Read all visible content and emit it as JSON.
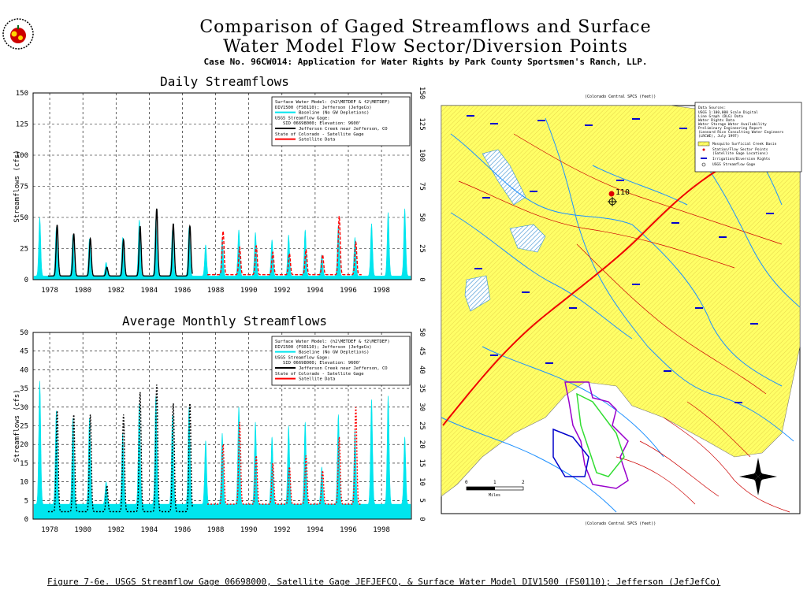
{
  "header": {
    "title_line1": "Comparison of Gaged Streamflows and Surface",
    "title_line2": "Water Model Flow Sector/Diversion Points",
    "subtitle": "Case No. 96CW014: Application for Water Rights by Park County Sportsmen's Ranch, LLP."
  },
  "footer": {
    "caption": "Figure 7-6e. USGS Streamflow Gage 06698000, Satellite Gage JEFJEFCO, & Surface Water Model DIV1500 (FS0110); Jefferson (JefJefCo)"
  },
  "legend": {
    "model_line1": "Surface Water Model: (h2\\METDEF & f2\\METDEF)",
    "model_line2": "DIV1500 (FS0110); Jefferson (JefgeCo)",
    "baseline": "Baseline (No GW Depletions)",
    "usgs_head": "USGS Streamflow Gage:",
    "usgs_line1": "SID 06698000; Elevation: 9600'",
    "usgs_line2": "Jefferson Creek near Jefferson, CO",
    "state_head": "State of Colorado - Satellite Gage",
    "satellite": "Satellite Data"
  },
  "map": {
    "site_label": "110",
    "top_axis": "(Colorado Central SPCS (feet))",
    "bottom_axis": "(Colorado Central SPCS (feet))",
    "legend_lines": [
      "Data Sources:",
      "USGS 1:100,000 Scale Digital",
      "Line Graph (DLG) Data",
      "Water Rights Data",
      "Water Storage Water Availability",
      "Preliminary Engineering Report",
      "(Leonard Rice Consulting Water Engineers",
      "(LRCWE), July 1997)"
    ],
    "legend_items": [
      "Mosquito Surficial Creek Basin",
      "Station/Flow Sector Points",
      "(Satellite Gage Locations)",
      "Irrigation/Diversion Rights",
      "USGS Streamflow Gage"
    ],
    "scale_labels": [
      "0",
      "1",
      "2"
    ],
    "scale_unit": "Miles"
  },
  "chart_data": [
    {
      "type": "area",
      "title": "Daily Streamflows",
      "ylabel": "Streamflows (cfs)",
      "xlim": [
        1977,
        1999.8
      ],
      "ylim": [
        0,
        150
      ],
      "yticks": [
        0,
        25,
        50,
        75,
        100,
        125,
        150
      ],
      "xticks": [
        1978,
        1980,
        1982,
        1984,
        1986,
        1988,
        1990,
        1992,
        1994,
        1996,
        1998
      ],
      "grid": true,
      "legend": "top-right",
      "series": [
        {
          "name": "Baseline (No GW Depletions)",
          "color": "#00e5ee",
          "kind": "area",
          "peaks": [
            [
              1977.4,
              50
            ],
            [
              1978.4,
              42
            ],
            [
              1979.4,
              36
            ],
            [
              1980.4,
              33
            ],
            [
              1981.4,
              14
            ],
            [
              1982.4,
              34
            ],
            [
              1983.4,
              48
            ],
            [
              1984.4,
              49
            ],
            [
              1985.4,
              40
            ],
            [
              1986.4,
              42
            ],
            [
              1987.4,
              28
            ],
            [
              1988.4,
              34
            ],
            [
              1989.4,
              40
            ],
            [
              1990.4,
              38
            ],
            [
              1991.4,
              32
            ],
            [
              1992.4,
              36
            ],
            [
              1993.4,
              40
            ],
            [
              1994.4,
              20
            ],
            [
              1995.4,
              44
            ],
            [
              1996.4,
              34
            ],
            [
              1997.4,
              45
            ],
            [
              1998.4,
              54
            ],
            [
              1999.4,
              57
            ]
          ],
          "base": 3
        },
        {
          "name": "USGS Streamflow Gage",
          "color": "#000000",
          "kind": "line",
          "peaks": [
            [
              1978.45,
              44
            ],
            [
              1979.45,
              37
            ],
            [
              1980.45,
              33
            ],
            [
              1981.45,
              10
            ],
            [
              1982.45,
              32
            ],
            [
              1983.45,
              43
            ],
            [
              1984.45,
              57
            ],
            [
              1985.45,
              45
            ],
            [
              1986.45,
              43
            ]
          ],
          "start": 1977.9,
          "end": 1986.6,
          "base": 3
        },
        {
          "name": "Satellite Data",
          "color": "#ff0000",
          "kind": "dashed",
          "peaks": [
            [
              1988.45,
              39
            ],
            [
              1989.45,
              26
            ],
            [
              1990.45,
              27
            ],
            [
              1991.45,
              22
            ],
            [
              1992.45,
              21
            ],
            [
              1993.45,
              24
            ],
            [
              1994.45,
              20
            ],
            [
              1995.45,
              51
            ],
            [
              1996.45,
              30
            ]
          ],
          "start": 1987.5,
          "end": 1996.8,
          "base": 4
        }
      ]
    },
    {
      "type": "area",
      "title": "Average Monthly Streamflows",
      "ylabel": "Streamflows (cfs)",
      "xlim": [
        1977,
        1999.8
      ],
      "ylim": [
        0,
        50
      ],
      "yticks": [
        0,
        5,
        10,
        15,
        20,
        25,
        30,
        35,
        40,
        45,
        50
      ],
      "xticks": [
        1978,
        1980,
        1982,
        1984,
        1986,
        1988,
        1990,
        1992,
        1994,
        1996,
        1998
      ],
      "grid": true,
      "legend": "top-right",
      "series": [
        {
          "name": "Baseline (No GW Depletions)",
          "color": "#00e5ee",
          "kind": "area",
          "peaks": [
            [
              1977.4,
              37
            ],
            [
              1978.4,
              29
            ],
            [
              1979.4,
              27
            ],
            [
              1980.4,
              27
            ],
            [
              1981.4,
              10
            ],
            [
              1982.4,
              23
            ],
            [
              1983.4,
              31
            ],
            [
              1984.4,
              33
            ],
            [
              1985.4,
              28
            ],
            [
              1986.4,
              30
            ],
            [
              1987.4,
              21
            ],
            [
              1988.4,
              23
            ],
            [
              1989.4,
              30
            ],
            [
              1990.4,
              26
            ],
            [
              1991.4,
              22
            ],
            [
              1992.4,
              25
            ],
            [
              1993.4,
              26
            ],
            [
              1994.4,
              14
            ],
            [
              1995.4,
              28
            ],
            [
              1996.4,
              24
            ],
            [
              1997.4,
              32
            ],
            [
              1998.4,
              33
            ],
            [
              1999.4,
              22
            ]
          ],
          "base": 4
        },
        {
          "name": "USGS Streamflow Gage",
          "color": "#000000",
          "kind": "dotted",
          "peaks": [
            [
              1978.45,
              29
            ],
            [
              1979.45,
              28
            ],
            [
              1980.45,
              28
            ],
            [
              1981.45,
              9
            ],
            [
              1982.45,
              28
            ],
            [
              1983.45,
              34
            ],
            [
              1984.45,
              36
            ],
            [
              1985.45,
              31
            ],
            [
              1986.45,
              31
            ]
          ],
          "start": 1977.9,
          "end": 1986.6,
          "base": 2
        },
        {
          "name": "Satellite Data",
          "color": "#ff0000",
          "kind": "dotted",
          "peaks": [
            [
              1988.45,
              20
            ],
            [
              1989.45,
              26
            ],
            [
              1990.45,
              17
            ],
            [
              1991.45,
              15
            ],
            [
              1992.45,
              14
            ],
            [
              1993.45,
              17
            ],
            [
              1994.45,
              13
            ],
            [
              1995.45,
              22
            ],
            [
              1996.45,
              30
            ]
          ],
          "start": 1987.5,
          "end": 1996.8,
          "base": 4
        }
      ]
    }
  ]
}
